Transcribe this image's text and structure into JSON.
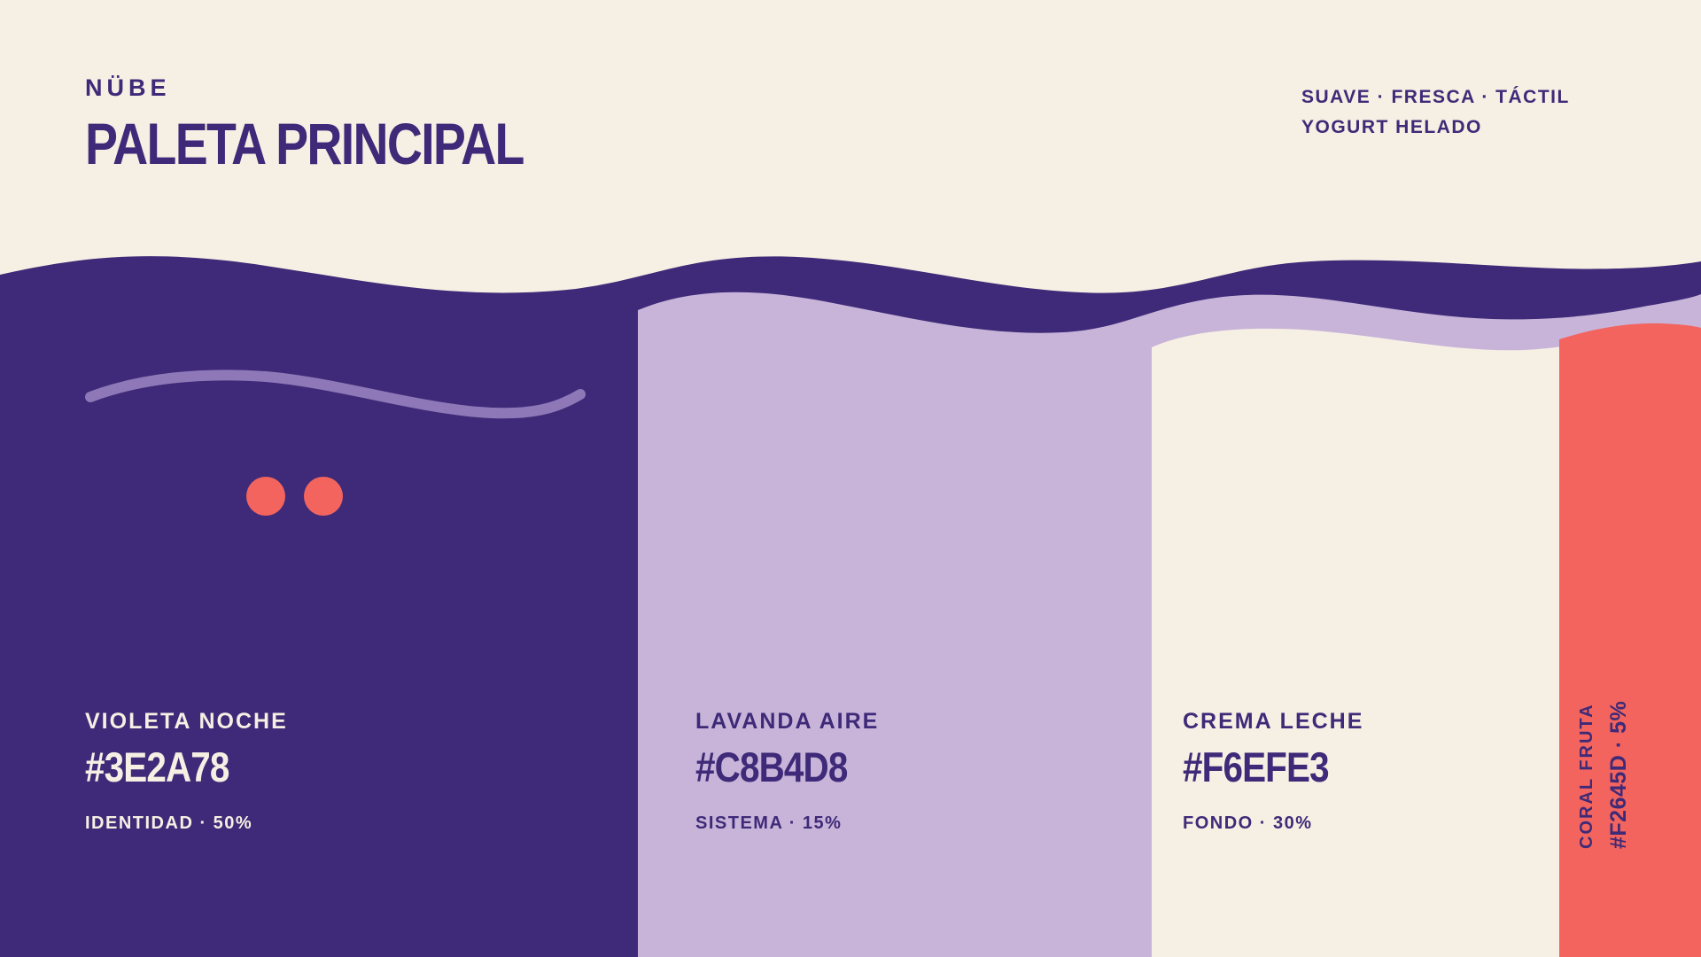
{
  "header": {
    "brand": "NÜBE",
    "title": "PALETA PRINCIPAL",
    "tagline": "SUAVE · FRESCA · TÁCTIL",
    "subtagline": "YOGURT HELADO"
  },
  "swatches": [
    {
      "name": "VIOLETA NOCHE",
      "hex": "#3E2A78",
      "role": "IDENTIDAD · 50%",
      "color": "#3E2A78",
      "share": 50
    },
    {
      "name": "LAVANDA AIRE",
      "hex": "#C8B4D8",
      "role": "SISTEMA · 15%",
      "color": "#C8B4D8",
      "share": 15
    },
    {
      "name": "CREMA LECHE",
      "hex": "#F6EFE3",
      "role": "FONDO · 30%",
      "color": "#F6EFE3",
      "share": 30
    },
    {
      "name": "CORAL FRUTA",
      "hex": "#F2645D",
      "share_label": "5%",
      "separator": "·",
      "color": "#F2645D",
      "share": 5
    }
  ],
  "decoration": {
    "swoosh_color": "#8E78B8",
    "dot_color": "#F2645D",
    "dot_count": 2
  }
}
